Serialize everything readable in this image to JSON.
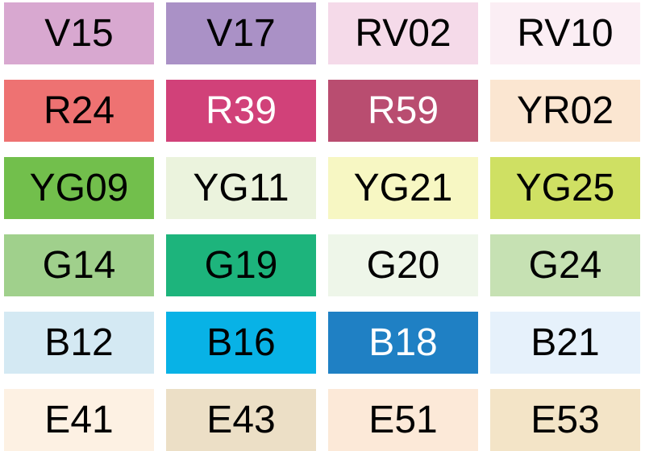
{
  "swatches": [
    {
      "code": "V15",
      "color": "#d8a8d0",
      "text_color": "#000000"
    },
    {
      "code": "V17",
      "color": "#aa91c6",
      "text_color": "#000000"
    },
    {
      "code": "RV02",
      "color": "#f5dae9",
      "text_color": "#000000"
    },
    {
      "code": "RV10",
      "color": "#fbeef4",
      "text_color": "#000000"
    },
    {
      "code": "R24",
      "color": "#ee7272",
      "text_color": "#000000"
    },
    {
      "code": "R39",
      "color": "#d14179",
      "text_color": "#ffffff"
    },
    {
      "code": "R59",
      "color": "#b94d70",
      "text_color": "#ffffff"
    },
    {
      "code": "YR02",
      "color": "#fbe6d1",
      "text_color": "#000000"
    },
    {
      "code": "YG09",
      "color": "#72bf4c",
      "text_color": "#000000"
    },
    {
      "code": "YG11",
      "color": "#ebf3dd",
      "text_color": "#000000"
    },
    {
      "code": "YG21",
      "color": "#f7f7c3",
      "text_color": "#000000"
    },
    {
      "code": "YG25",
      "color": "#cfe063",
      "text_color": "#000000"
    },
    {
      "code": "G14",
      "color": "#a0d08c",
      "text_color": "#000000"
    },
    {
      "code": "G19",
      "color": "#1db47c",
      "text_color": "#000000"
    },
    {
      "code": "G20",
      "color": "#eef6e9",
      "text_color": "#000000"
    },
    {
      "code": "G24",
      "color": "#c6e1b3",
      "text_color": "#000000"
    },
    {
      "code": "B12",
      "color": "#d4e9f3",
      "text_color": "#000000"
    },
    {
      "code": "B16",
      "color": "#08b2e6",
      "text_color": "#000000"
    },
    {
      "code": "B18",
      "color": "#1f80c4",
      "text_color": "#ffffff"
    },
    {
      "code": "B21",
      "color": "#e6f1fb",
      "text_color": "#000000"
    },
    {
      "code": "E41",
      "color": "#fdf1e3",
      "text_color": "#000000"
    },
    {
      "code": "E43",
      "color": "#ecdfc6",
      "text_color": "#000000"
    },
    {
      "code": "E51",
      "color": "#fce9d8",
      "text_color": "#000000"
    },
    {
      "code": "E53",
      "color": "#f3e4c7",
      "text_color": "#000000"
    }
  ]
}
